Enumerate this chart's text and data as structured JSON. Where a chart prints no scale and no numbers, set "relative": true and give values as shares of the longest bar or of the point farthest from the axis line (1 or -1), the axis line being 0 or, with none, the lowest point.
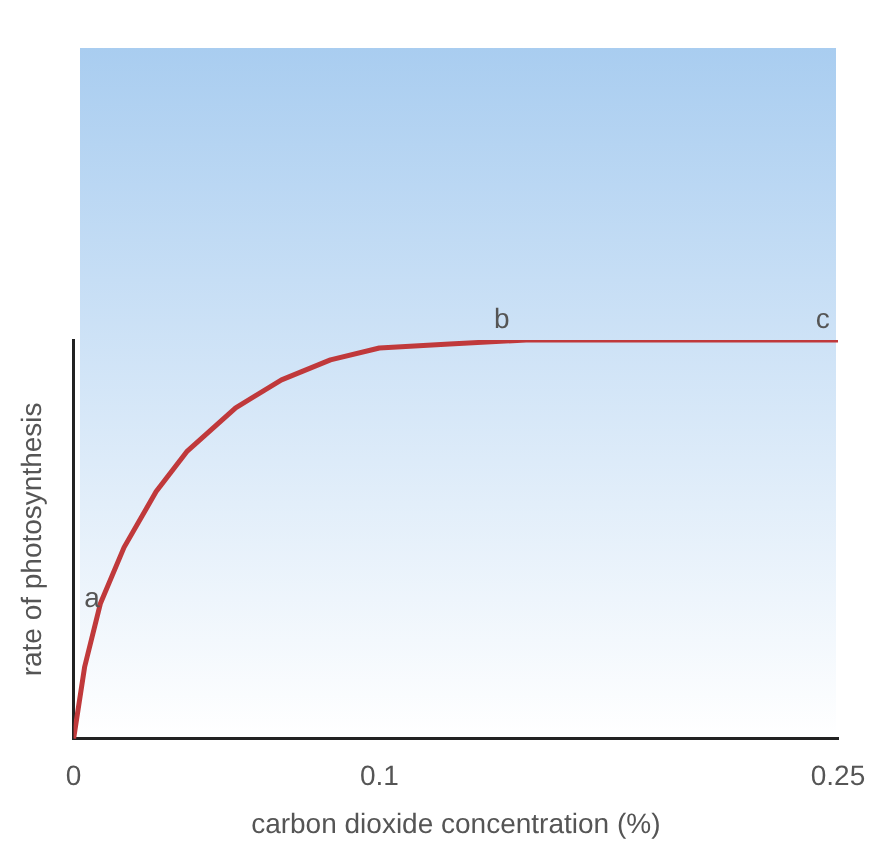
{
  "chart_data": {
    "type": "line",
    "relative": true,
    "xlabel": "carbon dioxide concentration (%)",
    "ylabel": "rate of photosynthesis",
    "xlim": [
      0,
      0.25
    ],
    "xticks": [
      0,
      0.1,
      0.25
    ],
    "grid": false,
    "legend": false,
    "marker": "none",
    "line_style": "solid",
    "series": [
      {
        "color": "#c0393b",
        "x": [
          0,
          0.0036,
          0.0088,
          0.0165,
          0.027,
          0.037,
          0.053,
          0.068,
          0.084,
          0.1,
          0.123,
          0.148,
          0.25
        ],
        "values": [
          0,
          0.18,
          0.34,
          0.48,
          0.62,
          0.72,
          0.83,
          0.9,
          0.95,
          0.98,
          0.99,
          1,
          1
        ]
      }
    ],
    "annotations": [
      {
        "text": "a",
        "x": 0.006,
        "y": 0.3
      },
      {
        "text": "b",
        "x": 0.14,
        "y": 1
      },
      {
        "text": "c",
        "x": 0.245,
        "y": 1
      }
    ]
  }
}
